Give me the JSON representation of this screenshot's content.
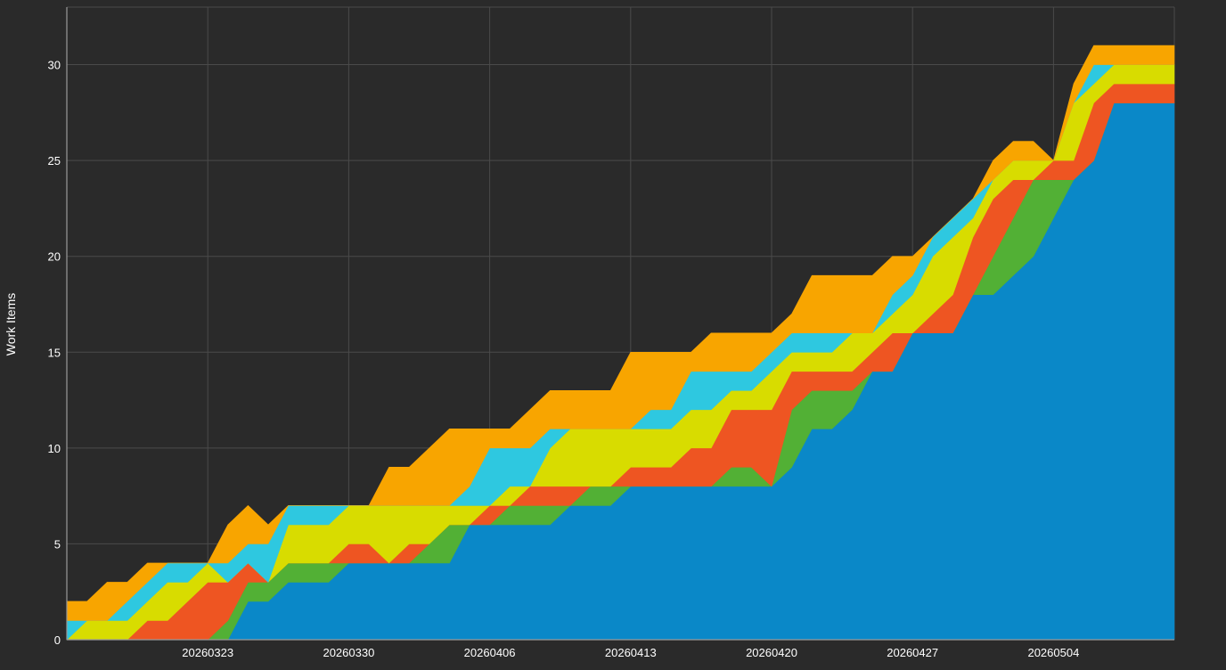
{
  "chart_data": {
    "type": "area",
    "stacked": true,
    "title": "",
    "xlabel": "",
    "ylabel": "Work Items",
    "ylim": [
      0,
      33
    ],
    "yticks": [
      0,
      5,
      10,
      15,
      20,
      25,
      30
    ],
    "x": [
      "20260316",
      "20260317",
      "20260318",
      "20260319",
      "20260320",
      "20260321",
      "20260322",
      "20260323",
      "20260324",
      "20260325",
      "20260326",
      "20260327",
      "20260328",
      "20260329",
      "20260330",
      "20260331",
      "20260401",
      "20260402",
      "20260403",
      "20260404",
      "20260405",
      "20260406",
      "20260407",
      "20260408",
      "20260409",
      "20260410",
      "20260411",
      "20260412",
      "20260413",
      "20260414",
      "20260415",
      "20260416",
      "20260417",
      "20260418",
      "20260419",
      "20260420",
      "20260421",
      "20260422",
      "20260423",
      "20260424",
      "20260425",
      "20260426",
      "20260427",
      "20260428",
      "20260429",
      "20260430",
      "20260501",
      "20260502",
      "20260503",
      "20260504",
      "20260505",
      "20260506",
      "20260507",
      "20260508",
      "20260509",
      "20260510"
    ],
    "xticks": [
      "20260323",
      "20260330",
      "20260406",
      "20260413",
      "20260420",
      "20260427",
      "20260504"
    ],
    "grid": true,
    "legend": "none",
    "series": [
      {
        "color": "#0a88c8",
        "values": [
          0,
          0,
          0,
          0,
          0,
          0,
          0,
          0,
          0,
          2,
          2,
          3,
          3,
          3,
          4,
          4,
          4,
          4,
          4,
          4,
          6,
          6,
          6,
          6,
          6,
          7,
          7,
          7,
          8,
          8,
          8,
          8,
          8,
          8,
          8,
          8,
          9,
          11,
          11,
          12,
          14,
          14,
          16,
          16,
          16,
          18,
          18,
          19,
          20,
          22,
          24,
          25,
          28,
          28,
          28,
          28
        ]
      },
      {
        "color": "#52b035",
        "values": [
          0,
          0,
          0,
          0,
          0,
          0,
          0,
          0,
          1,
          1,
          1,
          1,
          1,
          1,
          0,
          0,
          0,
          0,
          1,
          2,
          0,
          0,
          1,
          1,
          1,
          0,
          1,
          1,
          0,
          0,
          0,
          0,
          0,
          1,
          1,
          0,
          3,
          2,
          2,
          1,
          0,
          0,
          0,
          0,
          0,
          0,
          2,
          3,
          4,
          2,
          0,
          0,
          0,
          0,
          0,
          0
        ]
      },
      {
        "color": "#ee5522",
        "values": [
          0,
          0,
          0,
          0,
          1,
          1,
          2,
          3,
          2,
          1,
          0,
          0,
          0,
          0,
          1,
          1,
          0,
          1,
          0,
          0,
          0,
          1,
          0,
          1,
          1,
          1,
          0,
          0,
          1,
          1,
          1,
          2,
          2,
          3,
          3,
          4,
          2,
          1,
          1,
          1,
          1,
          2,
          0,
          1,
          2,
          3,
          3,
          2,
          0,
          1,
          1,
          3,
          1,
          1,
          1,
          1
        ]
      },
      {
        "color": "#d8dc00",
        "values": [
          0,
          1,
          1,
          1,
          1,
          2,
          1,
          1,
          0,
          0,
          0,
          2,
          2,
          2,
          2,
          2,
          3,
          2,
          2,
          1,
          1,
          0,
          1,
          0,
          2,
          3,
          3,
          3,
          2,
          2,
          2,
          2,
          2,
          1,
          1,
          2,
          1,
          1,
          1,
          2,
          1,
          1,
          2,
          3,
          3,
          1,
          1,
          1,
          1,
          0,
          3,
          1,
          1,
          1,
          1,
          1
        ]
      },
      {
        "color": "#2ec8e0",
        "values": [
          1,
          0,
          0,
          1,
          1,
          1,
          1,
          0,
          1,
          1,
          2,
          1,
          1,
          1,
          0,
          0,
          0,
          0,
          0,
          0,
          1,
          3,
          2,
          2,
          1,
          0,
          0,
          0,
          0,
          1,
          1,
          2,
          2,
          1,
          1,
          1,
          1,
          1,
          1,
          0,
          0,
          1,
          1,
          1,
          1,
          1,
          0,
          0,
          0,
          0,
          0,
          1,
          0,
          0,
          0,
          0
        ]
      },
      {
        "color": "#f8a500",
        "values": [
          1,
          1,
          2,
          1,
          1,
          0,
          0,
          0,
          2,
          2,
          1,
          0,
          0,
          0,
          0,
          0,
          2,
          2,
          3,
          4,
          3,
          1,
          1,
          2,
          2,
          2,
          2,
          2,
          4,
          3,
          3,
          1,
          2,
          2,
          2,
          1,
          1,
          3,
          3,
          3,
          3,
          2,
          1,
          0,
          0,
          0,
          1,
          1,
          1,
          0,
          1,
          1,
          1,
          1,
          1,
          1
        ]
      }
    ]
  }
}
